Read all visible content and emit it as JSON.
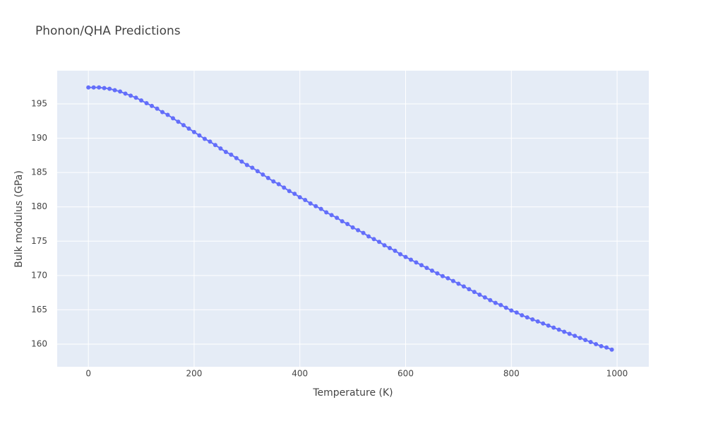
{
  "chart_data": {
    "type": "line",
    "title": "Phonon/QHA Predictions",
    "xlabel": "Temperature (K)",
    "ylabel": "Bulk modulus (GPa)",
    "x": [
      0,
      10,
      20,
      30,
      40,
      50,
      60,
      70,
      80,
      90,
      100,
      110,
      120,
      130,
      140,
      150,
      160,
      170,
      180,
      190,
      200,
      210,
      220,
      230,
      240,
      250,
      260,
      270,
      280,
      290,
      300,
      310,
      320,
      330,
      340,
      350,
      360,
      370,
      380,
      390,
      400,
      410,
      420,
      430,
      440,
      450,
      460,
      470,
      480,
      490,
      500,
      510,
      520,
      530,
      540,
      550,
      560,
      570,
      580,
      590,
      600,
      610,
      620,
      630,
      640,
      650,
      660,
      670,
      680,
      690,
      700,
      710,
      720,
      730,
      740,
      750,
      760,
      770,
      780,
      790,
      800,
      810,
      820,
      830,
      840,
      850,
      860,
      870,
      880,
      890,
      900,
      910,
      920,
      930,
      940,
      950,
      960,
      970,
      980,
      990
    ],
    "series": [
      {
        "color": "#636efa",
        "values": [
          197.4,
          197.4,
          197.4,
          197.3,
          197.2,
          197.0,
          196.8,
          196.5,
          196.2,
          195.9,
          195.5,
          195.1,
          194.7,
          194.3,
          193.8,
          193.4,
          192.9,
          192.4,
          191.9,
          191.4,
          190.9,
          190.4,
          189.9,
          189.5,
          189.0,
          188.5,
          188.0,
          187.6,
          187.1,
          186.6,
          186.1,
          185.7,
          185.2,
          184.7,
          184.2,
          183.7,
          183.3,
          182.8,
          182.3,
          181.9,
          181.4,
          181.0,
          180.5,
          180.1,
          179.7,
          179.2,
          178.8,
          178.4,
          177.9,
          177.5,
          177.0,
          176.6,
          176.2,
          175.7,
          175.3,
          174.9,
          174.4,
          174.0,
          173.6,
          173.1,
          172.7,
          172.3,
          171.9,
          171.5,
          171.1,
          170.7,
          170.3,
          169.9,
          169.6,
          169.2,
          168.8,
          168.4,
          168.0,
          167.6,
          167.2,
          166.8,
          166.4,
          166.0,
          165.7,
          165.3,
          164.9,
          164.6,
          164.2,
          163.9,
          163.6,
          163.3,
          163.0,
          162.7,
          162.4,
          162.1,
          161.8,
          161.5,
          161.2,
          160.9,
          160.6,
          160.3,
          160.0,
          159.7,
          159.5,
          159.2
        ]
      }
    ],
    "xlim": [
      -59,
      1060
    ],
    "ylim": [
      156.7,
      199.84
    ],
    "xticks": [
      0,
      200,
      400,
      600,
      800,
      1000
    ],
    "yticks": [
      160,
      165,
      170,
      175,
      180,
      185,
      190,
      195
    ],
    "grid": true
  }
}
